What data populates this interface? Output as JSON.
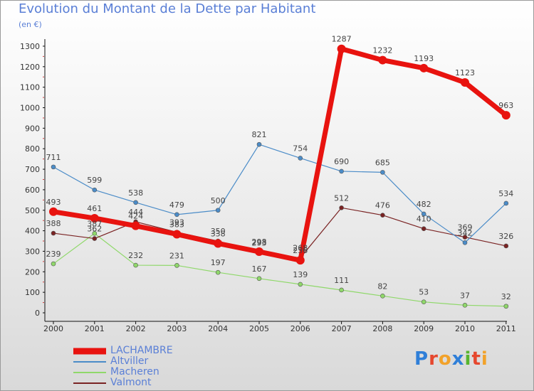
{
  "title": "Evolution du Montant de la Dette par Habitant",
  "unit_label": "(en €)",
  "logo": {
    "text": "Proxiti",
    "letter_colors": [
      "#2f7fd8",
      "#e6472e",
      "#f2a22a",
      "#2f7fd8",
      "#58b52f",
      "#e6472e",
      "#f2a22a"
    ]
  },
  "chart_data": {
    "type": "line",
    "title": "Evolution du Montant de la Dette par Habitant",
    "ylabel": "(en €)",
    "xlabel": "",
    "categories": [
      "2000",
      "2001",
      "2002",
      "2003",
      "2004",
      "2005",
      "2006",
      "2007",
      "2008",
      "2009",
      "2010",
      "2011"
    ],
    "yticks": [
      0,
      100,
      200,
      300,
      400,
      500,
      600,
      700,
      800,
      900,
      1000,
      1100,
      1200,
      1300
    ],
    "ylim": [
      0,
      1350
    ],
    "grid": false,
    "legend_position": "bottom-left",
    "series": [
      {
        "name": "LACHAMBRE",
        "color": "#e8130f",
        "values": [
          493,
          461,
          424,
          383,
          338,
          298,
          256,
          1287,
          1232,
          1193,
          1123,
          963
        ]
      },
      {
        "name": "Altviller",
        "color": "#4b8cc8",
        "values": [
          711,
          599,
          538,
          479,
          500,
          821,
          754,
          690,
          685,
          482,
          342,
          534
        ]
      },
      {
        "name": "Macheren",
        "color": "#8fd86a",
        "values": [
          239,
          387,
          232,
          231,
          197,
          167,
          139,
          111,
          82,
          53,
          37,
          32
        ]
      },
      {
        "name": "Valmont",
        "color": "#7a2323",
        "values": [
          388,
          362,
          444,
          393,
          350,
          293,
          268,
          512,
          476,
          410,
          369,
          326
        ]
      }
    ]
  }
}
